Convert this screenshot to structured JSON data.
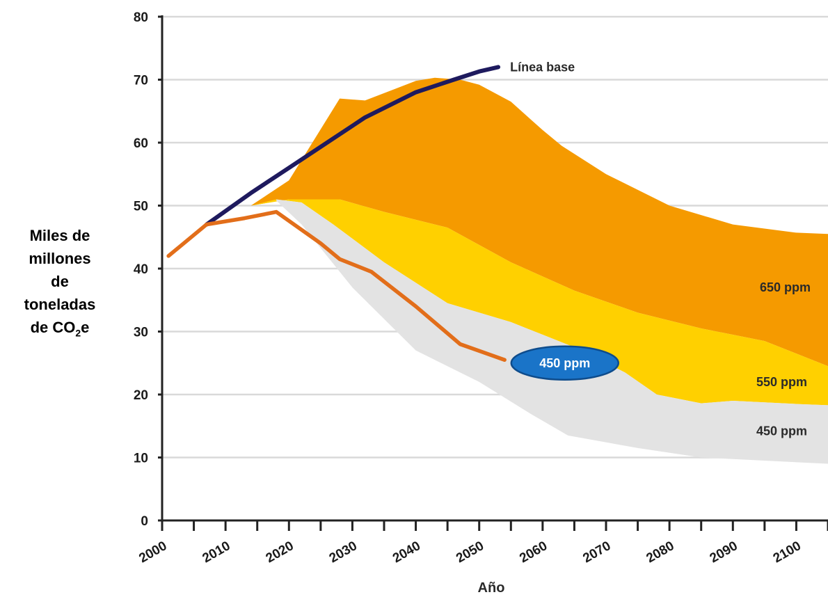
{
  "chart_data": {
    "type": "area",
    "title": "",
    "xlabel": "Año",
    "ylabel_lines": [
      "Miles de",
      "millones",
      "de",
      "toneladas"
    ],
    "ylabel_last_prefix": "de CO",
    "ylabel_last_sub": "2",
    "ylabel_last_suffix": "e",
    "xlim": [
      2000,
      2105
    ],
    "ylim": [
      0,
      80
    ],
    "x_ticks": [
      "2000",
      "2010",
      "2020",
      "2030",
      "2040",
      "2050",
      "2060",
      "2070",
      "2080",
      "2090",
      "2100"
    ],
    "y_ticks": [
      "0",
      "10",
      "20",
      "30",
      "40",
      "50",
      "60",
      "70",
      "80"
    ],
    "grid": true,
    "bands": [
      {
        "name": "650 ppm",
        "color": "#F59A00",
        "upper": [
          [
            2014,
            50
          ],
          [
            2020,
            54
          ],
          [
            2028,
            67
          ],
          [
            2032,
            66.7
          ],
          [
            2040,
            69.8
          ],
          [
            2043,
            70.3
          ],
          [
            2047,
            70
          ],
          [
            2050,
            69.2
          ],
          [
            2055,
            66.5
          ],
          [
            2060,
            62
          ],
          [
            2063,
            59.5
          ],
          [
            2070,
            55
          ],
          [
            2080,
            50
          ],
          [
            2090,
            47
          ],
          [
            2100,
            45.7
          ],
          [
            2105,
            45.5
          ]
        ],
        "lower": [
          [
            2014,
            50
          ],
          [
            2020,
            51
          ],
          [
            2028,
            51
          ],
          [
            2035,
            49
          ],
          [
            2045,
            46.5
          ],
          [
            2055,
            41
          ],
          [
            2065,
            36.5
          ],
          [
            2075,
            33
          ],
          [
            2085,
            30.5
          ],
          [
            2095,
            28.5
          ],
          [
            2105,
            24.5
          ]
        ]
      },
      {
        "name": "550 ppm",
        "color": "#FFD000",
        "upper": [
          [
            2014,
            50
          ],
          [
            2020,
            51
          ],
          [
            2028,
            51
          ],
          [
            2035,
            49
          ],
          [
            2045,
            46.5
          ],
          [
            2055,
            41
          ],
          [
            2065,
            36.5
          ],
          [
            2075,
            33
          ],
          [
            2085,
            30.5
          ],
          [
            2095,
            28.5
          ],
          [
            2105,
            24.5
          ]
        ],
        "lower": [
          [
            2018,
            51
          ],
          [
            2022,
            50.5
          ],
          [
            2027,
            47
          ],
          [
            2035,
            41
          ],
          [
            2045,
            34.5
          ],
          [
            2055,
            31.5
          ],
          [
            2065,
            27.5
          ],
          [
            2073,
            23.5
          ],
          [
            2078,
            20
          ],
          [
            2085,
            18.6
          ],
          [
            2090,
            19
          ],
          [
            2100,
            18.5
          ],
          [
            2105,
            18.3
          ]
        ]
      },
      {
        "name": "450 ppm",
        "color": "#E3E3E3",
        "upper": [
          [
            2018,
            51
          ],
          [
            2022,
            50.5
          ],
          [
            2027,
            47
          ],
          [
            2035,
            41
          ],
          [
            2045,
            34.5
          ],
          [
            2055,
            31.5
          ],
          [
            2065,
            27.5
          ],
          [
            2073,
            23.5
          ],
          [
            2078,
            20
          ],
          [
            2085,
            18.6
          ],
          [
            2090,
            19
          ],
          [
            2100,
            18.5
          ],
          [
            2105,
            18.3
          ]
        ],
        "lower": [
          [
            2018,
            50.8
          ],
          [
            2022,
            47
          ],
          [
            2030,
            37
          ],
          [
            2040,
            27
          ],
          [
            2050,
            22
          ],
          [
            2058,
            17
          ],
          [
            2064,
            13.5
          ],
          [
            2075,
            11.5
          ],
          [
            2085,
            10
          ],
          [
            2095,
            9.5
          ],
          [
            2105,
            9
          ]
        ]
      }
    ],
    "series": [
      {
        "name": "Línea base",
        "color": "#1E1A5E",
        "points": [
          [
            2007,
            47
          ],
          [
            2014,
            52
          ],
          [
            2020,
            56
          ],
          [
            2026,
            60
          ],
          [
            2032,
            64
          ],
          [
            2040,
            68
          ],
          [
            2046,
            70
          ],
          [
            2050,
            71.3
          ],
          [
            2053,
            72
          ]
        ]
      },
      {
        "color": "#E26E1A",
        "points": [
          [
            2001,
            42
          ],
          [
            2007,
            47
          ],
          [
            2013,
            48
          ],
          [
            2018,
            49
          ],
          [
            2025,
            44
          ],
          [
            2028,
            41.5
          ],
          [
            2033,
            39.5
          ],
          [
            2040,
            34
          ],
          [
            2047,
            28
          ],
          [
            2054,
            25.5
          ]
        ]
      }
    ],
    "annotations": {
      "baseline_label": "Línea base",
      "band_650": "650 ppm",
      "band_550": "550 ppm",
      "band_450": "450 ppm",
      "pathway_badge": "450 ppm"
    },
    "colors": {
      "grid": "#d9d9d9",
      "axis": "#222222",
      "badge_fill": "#1A74C8",
      "badge_stroke": "#0E4C8C",
      "badge_text": "#ffffff"
    }
  }
}
